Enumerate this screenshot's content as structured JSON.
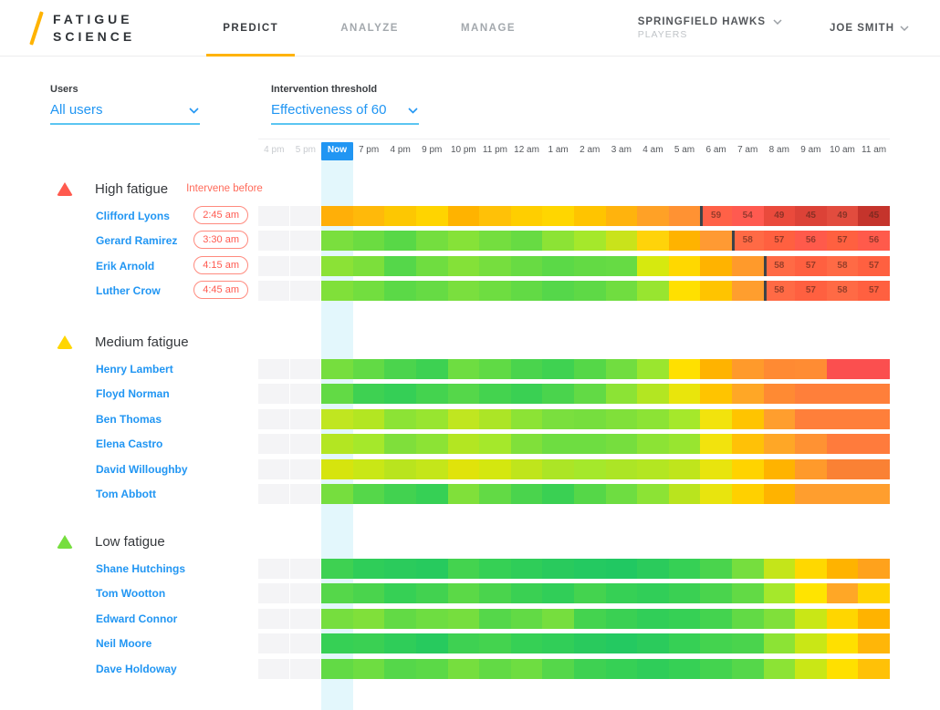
{
  "header": {
    "logo_line1": "FATIGUE",
    "logo_line2": "SCIENCE",
    "tabs": [
      {
        "label": "PREDICT",
        "active": true
      },
      {
        "label": "ANALYZE",
        "active": false
      },
      {
        "label": "MANAGE",
        "active": false
      }
    ],
    "team": {
      "name": "SPRINGFIELD HAWKS",
      "subtitle": "PLAYERS"
    },
    "user": "JOE SMITH"
  },
  "filters": {
    "users_label": "Users",
    "users_value": "All users",
    "threshold_label": "Intervention threshold",
    "threshold_value": "Effectiveness of 60"
  },
  "colors": {
    "accent_orange": "#FFB300",
    "link_blue": "#2196F3",
    "alert_coral": "#FF5A4E",
    "medium_yellow": "#FFD600",
    "low_green": "#76DE3E",
    "now_stripe": "#E3F7FC",
    "past_cell": "#F4F4F6"
  },
  "timeline": {
    "labels": [
      "4 pm",
      "5 pm",
      "Now",
      "7 pm",
      "4 pm",
      "9 pm",
      "10 pm",
      "11 pm",
      "12 am",
      "1 am",
      "2 am",
      "3 am",
      "4 am",
      "5 am",
      "6 am",
      "7 am",
      "8 am",
      "9 am",
      "10 am",
      "11 am"
    ],
    "now_index": 2,
    "muted_indices": [
      0,
      1
    ],
    "past_columns": 2
  },
  "sections": [
    {
      "label": "High fatigue",
      "icon": "high-fatigue-triangle-icon",
      "icon_color": "#FF5A4E",
      "note": "Intervene before",
      "players": [
        {
          "name": "Clifford Lyons",
          "intervene": "2:45 am",
          "marker": 12,
          "labels": {
            "12": "59",
            "13": "54",
            "14": "49",
            "15": "45",
            "16": "49",
            "17": "45"
          },
          "cells": [
            "#FFAF08",
            "#FFB90A",
            "#FDC702",
            "#FFD400",
            "#FFB300",
            "#FFC107",
            "#FFCE00",
            "#FFD600",
            "#FFC400",
            "#FFB30D",
            "#FFA126",
            "#FF9233",
            "#FF6147",
            "#FF5A50",
            "#EA4A3C",
            "#DC4237",
            "#E24C3E",
            "#C5342C"
          ]
        },
        {
          "name": "Gerard Ramirez",
          "intervene": "3:30 am",
          "marker": 13,
          "labels": {
            "13": "58",
            "14": "57",
            "15": "56",
            "16": "57",
            "17": "56"
          },
          "cells": [
            "#7ADF3E",
            "#6BDC41",
            "#58D847",
            "#74DE3F",
            "#86E238",
            "#74DE3F",
            "#67DB43",
            "#8CE335",
            "#A5E82B",
            "#C9E31B",
            "#FFD30A",
            "#FFB300",
            "#FF9A33",
            "#FF6A45",
            "#FF6040",
            "#FF5A4B",
            "#FF6040",
            "#FF5A4B"
          ]
        },
        {
          "name": "Erik Arnold",
          "intervene": "4:15 am",
          "marker": 14,
          "labels": {
            "14": "58",
            "15": "57",
            "16": "58",
            "17": "57"
          },
          "cells": [
            "#8BE236",
            "#7CDF3B",
            "#55D74A",
            "#6FDD40",
            "#84E138",
            "#76DE3E",
            "#68DB43",
            "#5BD947",
            "#63DA44",
            "#66DB44",
            "#D6E90F",
            "#FFD800",
            "#FFB300",
            "#FF9A2B",
            "#FF6A45",
            "#FF6040",
            "#FF6A45",
            "#FF6040"
          ]
        },
        {
          "name": "Luther Crow",
          "intervene": "4:45 am",
          "marker": 14,
          "labels": {
            "14": "58",
            "15": "57",
            "16": "58",
            "17": "57"
          },
          "cells": [
            "#80E03A",
            "#72DE3F",
            "#5BD947",
            "#66DB44",
            "#7ADF3E",
            "#6EDD41",
            "#62DA45",
            "#55D74A",
            "#5ED946",
            "#70DD40",
            "#98E530",
            "#FFE000",
            "#FFC400",
            "#FF9E2E",
            "#FF6A45",
            "#FF6040",
            "#FF6A45",
            "#FF6040"
          ]
        }
      ]
    },
    {
      "label": "Medium fatigue",
      "icon": "medium-fatigue-triangle-icon",
      "icon_color": "#FFD600",
      "note": "",
      "players": [
        {
          "name": "Henry Lambert",
          "cells": [
            "#76DE3E",
            "#62DA45",
            "#4BD44D",
            "#3DD152",
            "#6EDD41",
            "#60DA45",
            "#4AD44D",
            "#3FD251",
            "#55D748",
            "#71DD40",
            "#9AE62F",
            "#FFE000",
            "#FFB300",
            "#FF9A2B",
            "#FF8A33",
            "#FF8C33",
            "#FB4F4F",
            "#FB4F4F"
          ]
        },
        {
          "name": "Floyd Norman",
          "cells": [
            "#62DA45",
            "#3ED152",
            "#35CF56",
            "#44D34F",
            "#55D74A",
            "#44D34F",
            "#3AD053",
            "#4AD44D",
            "#62DA45",
            "#8CE335",
            "#B3E622",
            "#E9E50C",
            "#FFC400",
            "#FFA726",
            "#FF8A33",
            "#FF7F3A",
            "#FF7F3A",
            "#FF7F3A"
          ]
        },
        {
          "name": "Ben Thomas",
          "cells": [
            "#C0E620",
            "#B3E622",
            "#8CE335",
            "#98E530",
            "#C0E620",
            "#ACE526",
            "#8CE335",
            "#7ADF3E",
            "#76DE3E",
            "#80E03A",
            "#8CE335",
            "#A5E82B",
            "#F2E30D",
            "#FFC400",
            "#FF9E2E",
            "#FF7F3A",
            "#FF7F3A",
            "#FF7F3A"
          ]
        },
        {
          "name": "Elena Castro",
          "cells": [
            "#B3E622",
            "#A5E82B",
            "#7FDF3B",
            "#8CE335",
            "#B3E622",
            "#A5E82B",
            "#80E03A",
            "#6EDD41",
            "#6EDD41",
            "#76DE3E",
            "#8CE335",
            "#98E530",
            "#F2E30D",
            "#FFC107",
            "#FFA726",
            "#FF9233",
            "#FF7B3C",
            "#FF7B3C"
          ]
        },
        {
          "name": "David Willoughby",
          "cells": [
            "#D6E40E",
            "#C9E716",
            "#B9E41E",
            "#C4E61A",
            "#E0E30B",
            "#D4E70F",
            "#BFE51C",
            "#ACE526",
            "#A5E82B",
            "#ACE526",
            "#B3E622",
            "#BFE51C",
            "#E8E40E",
            "#FFD300",
            "#FFB300",
            "#FF9A2B",
            "#FA8134",
            "#FA8134"
          ]
        },
        {
          "name": "Tom Abbott",
          "cells": [
            "#76DE3E",
            "#55D74A",
            "#42D250",
            "#36D055",
            "#80E03A",
            "#62DA45",
            "#4AD44D",
            "#3AD053",
            "#55D748",
            "#6EDD41",
            "#8CE335",
            "#B9E41E",
            "#E8E40E",
            "#FFD000",
            "#FFB300",
            "#FF9E2E",
            "#FF9E2E",
            "#FF9E2E"
          ]
        }
      ]
    },
    {
      "label": "Low fatigue",
      "icon": "low-fatigue-triangle-icon",
      "icon_color": "#76DE3E",
      "note": "",
      "players": [
        {
          "name": "Shane Hutchings",
          "cells": [
            "#3ED152",
            "#2FCD59",
            "#2BCB5C",
            "#27CA5E",
            "#44D34F",
            "#36D055",
            "#2FCD59",
            "#29CA5D",
            "#24C961",
            "#21C862",
            "#2BCB5C",
            "#36D055",
            "#4AD44D",
            "#76DE3E",
            "#C4E51A",
            "#FFD800",
            "#FFB300",
            "#FFA21C"
          ]
        },
        {
          "name": "Tom Wootton",
          "cells": [
            "#55D74A",
            "#4AD44D",
            "#36D055",
            "#42D250",
            "#5BD947",
            "#4AD44D",
            "#3AD053",
            "#31CE58",
            "#44D34F",
            "#36D055",
            "#31CE58",
            "#3AD053",
            "#4AD44D",
            "#62DA45",
            "#A5E82B",
            "#FFE400",
            "#FFA726",
            "#FFD300"
          ]
        },
        {
          "name": "Edward Connor",
          "cells": [
            "#76DE3E",
            "#80E03A",
            "#62DA45",
            "#6EDD41",
            "#76DE3E",
            "#55D74A",
            "#62DA45",
            "#76DE3E",
            "#44D34F",
            "#3AD053",
            "#31CE58",
            "#36D055",
            "#44D34F",
            "#62DA45",
            "#80E03A",
            "#C9E716",
            "#FFD600",
            "#FFB300"
          ]
        },
        {
          "name": "Neil Moore",
          "cells": [
            "#36D055",
            "#3AD053",
            "#2FCD59",
            "#27CA5E",
            "#3ED152",
            "#44D34F",
            "#36D055",
            "#31CE58",
            "#29CA5D",
            "#24C961",
            "#2BCB5C",
            "#36D055",
            "#44D34F",
            "#4AD44D",
            "#8CE335",
            "#C9E716",
            "#FFE000",
            "#FFB608"
          ]
        },
        {
          "name": "Dave Holdoway",
          "cells": [
            "#62DA45",
            "#6EDD41",
            "#55D74A",
            "#5BD947",
            "#76DE3E",
            "#62DA45",
            "#6EDD41",
            "#55D74A",
            "#3ED152",
            "#36D055",
            "#2FCD59",
            "#36D055",
            "#44D34F",
            "#55D74A",
            "#8CE335",
            "#C9E716",
            "#FFE000",
            "#FFC107"
          ]
        }
      ]
    }
  ]
}
